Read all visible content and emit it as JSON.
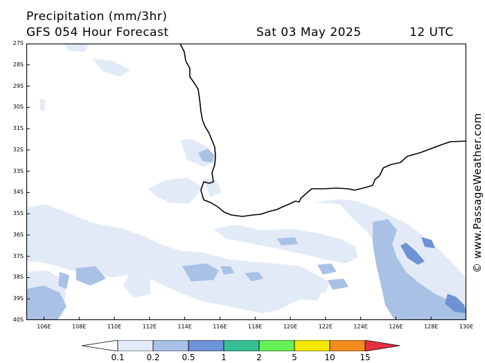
{
  "header": {
    "title": "Precipitation (mm/3hr)",
    "subtitle": "GFS 054 Hour Forecast",
    "date": "Sat 03 May 2025",
    "time": "12 UTC"
  },
  "credit": "© www.PassageWeather.com",
  "map": {
    "latitude_labels": [
      "27S",
      "28S",
      "29S",
      "30S",
      "31S",
      "32S",
      "33S",
      "34S",
      "35S",
      "36S",
      "37S",
      "38S",
      "39S",
      "40S"
    ],
    "longitude_labels": [
      "106E",
      "108E",
      "110E",
      "112E",
      "114E",
      "116E",
      "118E",
      "120E",
      "122E",
      "124E",
      "126E",
      "128E",
      "130E"
    ],
    "lon_range": [
      105,
      130
    ],
    "lat_range": [
      -27,
      -40
    ],
    "colors": {
      "coast": "#000000",
      "frame": "#000000"
    }
  },
  "legend": {
    "labels": [
      "0.1",
      "0.2",
      "0.5",
      "1",
      "2",
      "5",
      "10",
      "15"
    ],
    "colors": [
      "#ffffff",
      "#e3eaf7",
      "#a9c1e5",
      "#6d93d4",
      "#36be93",
      "#66ef56",
      "#f5e600",
      "#f28c1c",
      "#e4303e"
    ]
  }
}
